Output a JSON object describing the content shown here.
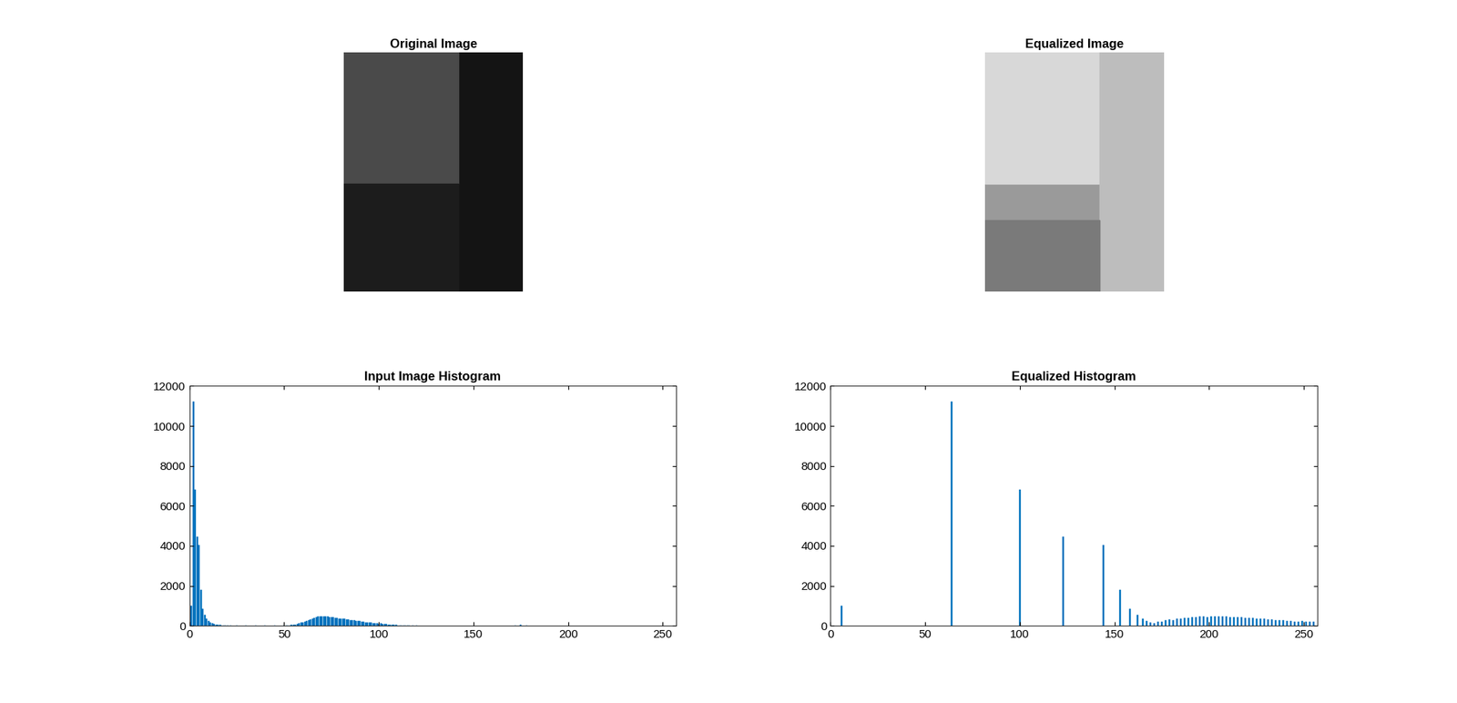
{
  "chart_data": [
    {
      "type": "image",
      "title": "Original Image"
    },
    {
      "type": "image",
      "title": "Equalized Image"
    },
    {
      "type": "bar",
      "title": "Input Image Histogram",
      "color": "#0072bd",
      "x": [
        1,
        2,
        3,
        4,
        5,
        6,
        7,
        8,
        9,
        10,
        11,
        12,
        13,
        14,
        15,
        16,
        17,
        18,
        19,
        20,
        22,
        25,
        30,
        35,
        40,
        45,
        50,
        51,
        52,
        53,
        54,
        55,
        56,
        57,
        58,
        59,
        60,
        61,
        62,
        63,
        64,
        65,
        66,
        67,
        68,
        69,
        70,
        71,
        72,
        73,
        74,
        75,
        76,
        77,
        78,
        79,
        80,
        81,
        82,
        83,
        84,
        85,
        86,
        87,
        88,
        89,
        90,
        91,
        92,
        93,
        94,
        95,
        96,
        97,
        98,
        99,
        100,
        101,
        102,
        103,
        104,
        105,
        106,
        107,
        108,
        109,
        110,
        111,
        112,
        113,
        114,
        115,
        116,
        118,
        120,
        172,
        175,
        178
      ],
      "values": [
        1000,
        11200,
        6800,
        4450,
        4050,
        1800,
        850,
        520,
        350,
        250,
        170,
        120,
        80,
        55,
        40,
        30,
        22,
        16,
        12,
        9,
        6,
        4,
        3,
        2,
        2,
        3,
        5,
        10,
        15,
        20,
        30,
        45,
        60,
        85,
        110,
        140,
        170,
        200,
        240,
        280,
        320,
        360,
        400,
        430,
        450,
        470,
        475,
        470,
        460,
        450,
        440,
        425,
        410,
        395,
        380,
        365,
        350,
        340,
        330,
        315,
        300,
        290,
        275,
        260,
        245,
        230,
        215,
        200,
        190,
        175,
        160,
        150,
        140,
        125,
        115,
        105,
        100,
        110,
        85,
        75,
        65,
        55,
        48,
        40,
        35,
        28,
        22,
        18,
        14,
        10,
        8,
        6,
        4,
        3,
        2,
        20,
        60,
        15
      ],
      "xlim": [
        0,
        257
      ],
      "xticks": [
        0,
        50,
        100,
        150,
        200,
        250
      ],
      "ylim": [
        0,
        12000
      ],
      "yticks": [
        0,
        2000,
        4000,
        6000,
        8000,
        10000,
        12000
      ]
    },
    {
      "type": "bar",
      "title": "Equalized Histogram",
      "color": "#0072bd",
      "x": [
        6,
        64,
        100,
        123,
        144,
        153,
        158,
        162,
        165,
        167,
        169,
        171,
        173,
        175,
        177,
        179,
        181,
        183,
        185,
        187,
        189,
        191,
        193,
        195,
        197,
        199,
        201,
        203,
        205,
        207,
        209,
        211,
        213,
        215,
        217,
        219,
        221,
        223,
        225,
        227,
        229,
        231,
        233,
        235,
        237,
        239,
        241,
        243,
        245,
        247,
        249,
        251,
        253,
        255
      ],
      "values": [
        1000,
        11200,
        6800,
        4450,
        4050,
        1800,
        850,
        520,
        350,
        250,
        170,
        120,
        200,
        180,
        260,
        300,
        280,
        340,
        350,
        380,
        400,
        420,
        430,
        450,
        460,
        440,
        470,
        480,
        460,
        470,
        450,
        440,
        430,
        420,
        410,
        400,
        380,
        370,
        350,
        340,
        330,
        310,
        300,
        290,
        270,
        260,
        240,
        230,
        210,
        200,
        220,
        200,
        190,
        180
      ],
      "xlim": [
        0,
        257
      ],
      "xticks": [
        0,
        50,
        100,
        150,
        200,
        250
      ],
      "ylim": [
        0,
        12000
      ],
      "yticks": [
        0,
        2000,
        4000,
        6000,
        8000,
        10000,
        12000
      ]
    }
  ]
}
